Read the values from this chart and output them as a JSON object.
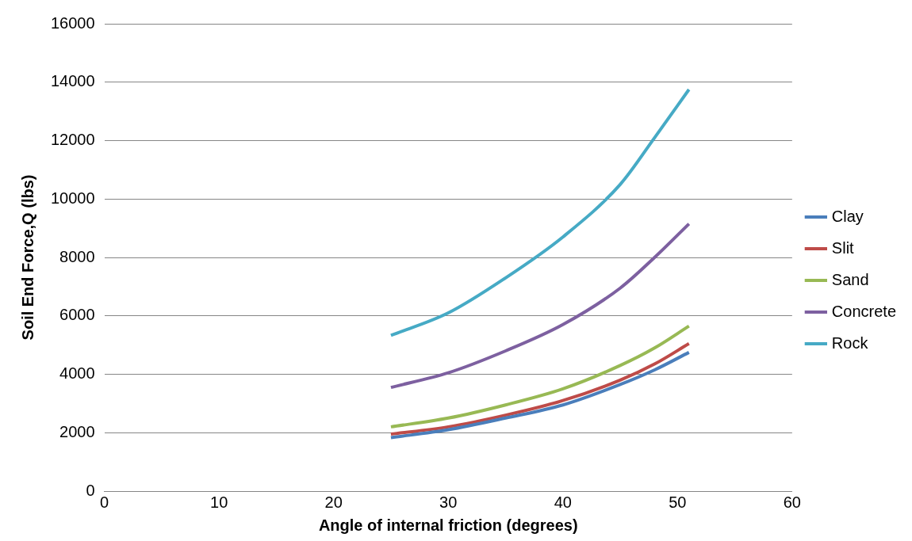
{
  "chart_data": {
    "type": "line",
    "xlabel": "Angle of internal friction (degrees)",
    "ylabel": "Soil End Force,Q (lbs)",
    "x": [
      25,
      30,
      35,
      40,
      45,
      48,
      51
    ],
    "series": [
      {
        "name": "Clay",
        "color": "#4a7ebb",
        "values": [
          1830,
          2100,
          2500,
          2950,
          3650,
          4150,
          4750
        ]
      },
      {
        "name": "Slit",
        "color": "#be4b48",
        "values": [
          1950,
          2200,
          2600,
          3100,
          3800,
          4350,
          5050
        ]
      },
      {
        "name": "Sand",
        "color": "#98b954",
        "values": [
          2200,
          2500,
          2950,
          3500,
          4300,
          4900,
          5650
        ]
      },
      {
        "name": "Concrete",
        "color": "#7d60a0",
        "values": [
          3550,
          4050,
          4800,
          5700,
          6950,
          8000,
          9150
        ]
      },
      {
        "name": "Rock",
        "color": "#46aac5",
        "values": [
          5330,
          6100,
          7300,
          8700,
          10500,
          12100,
          13750
        ]
      }
    ],
    "xlim": [
      0,
      60
    ],
    "xticks": [
      0,
      10,
      20,
      30,
      40,
      50,
      60
    ],
    "ylim": [
      0,
      16000
    ],
    "yticks": [
      0,
      2000,
      4000,
      6000,
      8000,
      10000,
      12000,
      14000,
      16000
    ],
    "grid": "y",
    "legend": "right"
  }
}
